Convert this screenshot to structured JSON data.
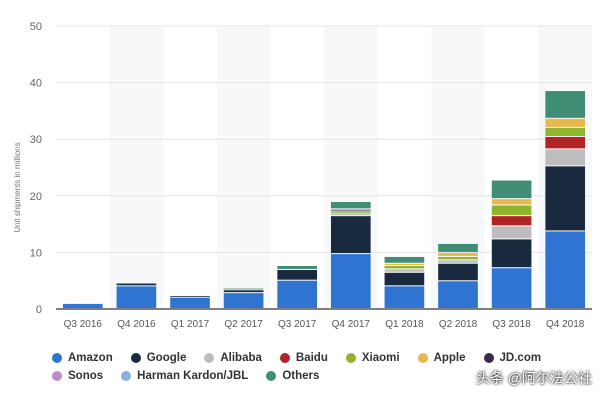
{
  "chart_data": {
    "type": "bar",
    "stacked": true,
    "ylabel": "Unit shipments in millions",
    "ylim": [
      0,
      50
    ],
    "yticks": [
      0,
      10,
      20,
      30,
      40,
      50
    ],
    "grid": true,
    "legend": "bottom",
    "categories": [
      "Q3 2016",
      "Q4 2016",
      "Q1 2017",
      "Q2 2017",
      "Q3 2017",
      "Q4 2017",
      "Q1 2018",
      "Q2 2018",
      "Q3 2018",
      "Q4 2018"
    ],
    "series": [
      {
        "name": "Amazon",
        "color": "#2f74d0",
        "values": [
          0.9,
          4.0,
          2.0,
          2.8,
          5.0,
          9.7,
          4.0,
          4.9,
          7.2,
          13.7
        ]
      },
      {
        "name": "Google",
        "color": "#1a2a3e",
        "values": [
          0,
          0.5,
          0.3,
          0.5,
          1.9,
          6.7,
          2.4,
          3.1,
          5.1,
          11.5
        ]
      },
      {
        "name": "Alibaba",
        "color": "#bdbdbd",
        "values": [
          0,
          0,
          0,
          0,
          0,
          0.5,
          0.6,
          0.6,
          2.3,
          3.0
        ]
      },
      {
        "name": "Baidu",
        "color": "#b22424",
        "values": [
          0,
          0,
          0,
          0,
          0,
          0,
          0,
          0,
          1.8,
          2.2
        ]
      },
      {
        "name": "Xiaomi",
        "color": "#8fb52e",
        "values": [
          0,
          0,
          0,
          0,
          0,
          0.2,
          0.6,
          0.6,
          1.9,
          1.6
        ]
      },
      {
        "name": "Apple",
        "color": "#e7b84b",
        "values": [
          0,
          0,
          0,
          0,
          0,
          0,
          0.4,
          0.7,
          1.1,
          1.6
        ]
      },
      {
        "name": "JD.com",
        "color": "#3b2a4f",
        "values": [
          0,
          0,
          0,
          0,
          0,
          0.3,
          0,
          0,
          0,
          0
        ]
      },
      {
        "name": "Sonos",
        "color": "#b98bd0",
        "values": [
          0,
          0,
          0,
          0,
          0,
          0.2,
          0,
          0,
          0,
          0
        ]
      },
      {
        "name": "Harman Kardon/JBL",
        "color": "#8ab0dc",
        "values": [
          0,
          0,
          0,
          0,
          0,
          0,
          0,
          0,
          0,
          0
        ]
      },
      {
        "name": "Others",
        "color": "#3f8d74",
        "values": [
          0,
          0,
          0,
          0.3,
          0.7,
          1.3,
          1.2,
          1.6,
          3.3,
          4.9
        ]
      }
    ]
  },
  "watermark": "头条 @阿尔法公社"
}
